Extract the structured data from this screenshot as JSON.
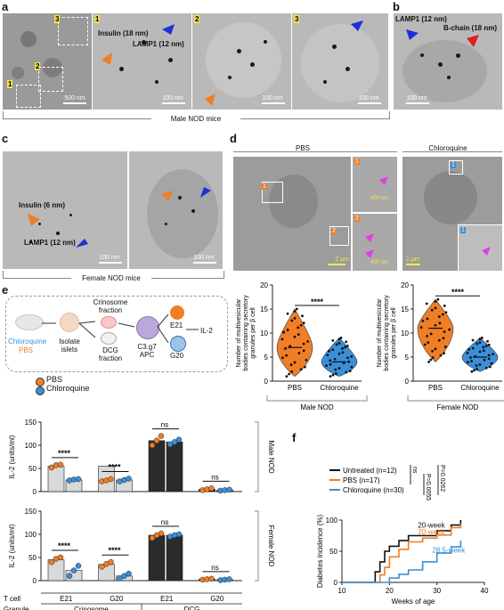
{
  "panels": {
    "a": {
      "letter": "a",
      "box_numbers": [
        "1",
        "2",
        "3"
      ],
      "insulin_label": "Insulin (18 nm)",
      "lamp1_label": "LAMP1 (12 nm)",
      "scalebar_overview": "500 nm",
      "scalebar_zoom": "100 nm",
      "caption": "Male NOD mice"
    },
    "b": {
      "letter": "b",
      "lamp1_label": "LAMP1 (12 nm)",
      "bchain_label": "B-chain (18 nm)",
      "scalebar": "100 nm"
    },
    "c": {
      "letter": "c",
      "insulin_label": "Insulin (6 nm)",
      "lamp1_label": "LAMP1 (12 nm)",
      "scalebar": "100 nm",
      "caption": "Female NOD mice"
    },
    "d": {
      "letter": "d",
      "pbs_title": "PBS",
      "chloroquine_title": "Chloroquine",
      "scale_2um": "2 μm",
      "scale_400nm": "400 nm",
      "scale_1um": "1 μm",
      "insert_numbers": [
        "1",
        "2",
        "1"
      ],
      "ylabel": "Number of multivesicular bodies containing secretory granules per β cell",
      "male": {
        "ticks": [
          "0",
          "5",
          "10",
          "15",
          "20"
        ],
        "categories": [
          "PBS",
          "Chloroquine"
        ],
        "signif": "****",
        "caption": "Male NOD"
      },
      "female": {
        "ticks": [
          "0",
          "5",
          "10",
          "15",
          "20"
        ],
        "categories": [
          "PBS",
          "Chloroquine"
        ],
        "signif": "****",
        "caption": "Female NOD"
      }
    },
    "e": {
      "letter": "e",
      "schematic": {
        "chloroquine": "Chloroquine",
        "pbs": "PBS",
        "isolate": "Isolate islets",
        "crinosome_fraction": "Crinosome fraction",
        "dcg_fraction": "DCG fraction",
        "apc": "C3.g7 APC",
        "e21": "E21",
        "g20": "G20",
        "il2": "IL-2"
      },
      "legend": [
        "PBS",
        "Chloroquine"
      ],
      "ylabel": "IL-2 (units/ml)",
      "ticks": [
        "0",
        "50",
        "100",
        "150"
      ],
      "male_label": "Male NOD",
      "female_label": "Female NOD",
      "signif_labels": [
        "****",
        "****",
        "ns",
        "ns"
      ],
      "tcell_label": "T cell",
      "granule_label": "Granule",
      "tcells": [
        "E21",
        "G20",
        "E21",
        "G20"
      ],
      "granules": [
        "Crinosome",
        "DCG"
      ]
    },
    "f": {
      "letter": "f",
      "legend": [
        "Untreated (n=12)",
        "PBS (n=17)",
        "Chloroquine (n=30)"
      ],
      "pvalues": [
        "ns",
        "P=0.0055",
        "P=0.0262"
      ],
      "annotations": [
        "20-week",
        "20-week",
        "28.5-week"
      ],
      "ylabel": "Diabetes incidence (%)",
      "xlabel": "Weeks of age",
      "xticks": [
        "10",
        "20",
        "30",
        "40"
      ]
    }
  },
  "colors": {
    "pbs": "#f07e26",
    "chloroquine": "#3a8fd8",
    "untreated": "#111111",
    "light_bar": "#d9d9d9",
    "dark_bar": "#2b2b2b"
  },
  "chart_data": [
    {
      "type": "violin",
      "panel": "d-male",
      "categories": [
        "PBS",
        "Chloroquine"
      ],
      "ylabel": "Number of multivesicular bodies containing secretory granules per β cell",
      "ylim": [
        0,
        20
      ],
      "medians": [
        7,
        4
      ],
      "ranges": [
        [
          1,
          15
        ],
        [
          1,
          9
        ]
      ],
      "significance": "****"
    },
    {
      "type": "violin",
      "panel": "d-female",
      "categories": [
        "PBS",
        "Chloroquine"
      ],
      "ylabel": "Number of multivesicular bodies containing secretory granules per β cell",
      "ylim": [
        0,
        20
      ],
      "medians": [
        11,
        5
      ],
      "ranges": [
        [
          4,
          17
        ],
        [
          2,
          9
        ]
      ],
      "significance": "****"
    },
    {
      "type": "bar",
      "panel": "e-male",
      "ylabel": "IL-2 (units/ml)",
      "ylim": [
        0,
        150
      ],
      "categories": [
        "E21 Crinosome",
        "G20 Crinosome",
        "E21 DCG",
        "G20 DCG"
      ],
      "series": [
        {
          "name": "PBS",
          "values": [
            55,
            55,
            110,
            5
          ]
        },
        {
          "name": "Chloroquine",
          "values": [
            25,
            25,
            107,
            3
          ]
        }
      ],
      "points": [
        [
          [
            52,
            57,
            58
          ],
          [
            22,
            24,
            27
          ],
          [
            100,
            110,
            120
          ],
          [
            3,
            5,
            7
          ]
        ],
        [
          [
            24,
            26,
            27
          ],
          [
            22,
            25,
            28
          ],
          [
            102,
            107,
            112
          ],
          [
            2,
            3,
            4
          ]
        ]
      ],
      "significance": [
        "****",
        "****",
        "ns",
        "ns"
      ]
    },
    {
      "type": "bar",
      "panel": "e-female",
      "ylabel": "IL-2 (units/ml)",
      "ylim": [
        0,
        150
      ],
      "categories": [
        "E21 Crinosome",
        "G20 Crinosome",
        "E21 DCG",
        "G20 DCG"
      ],
      "series": [
        {
          "name": "PBS",
          "values": [
            45,
            35,
            98,
            3
          ]
        },
        {
          "name": "Chloroquine",
          "values": [
            22,
            10,
            98,
            2
          ]
        }
      ],
      "points": [
        [
          [
            40,
            47,
            50
          ],
          [
            30,
            36,
            40
          ],
          [
            92,
            98,
            102
          ],
          [
            2,
            3,
            4
          ]
        ],
        [
          [
            10,
            22,
            32
          ],
          [
            5,
            10,
            15
          ],
          [
            95,
            98,
            100
          ],
          [
            1,
            2,
            3
          ]
        ]
      ],
      "significance": [
        "****",
        "****",
        "ns",
        "ns"
      ]
    },
    {
      "type": "line",
      "panel": "f",
      "xlabel": "Weeks of age",
      "ylabel": "Diabetes incidence (%)",
      "xlim": [
        10,
        40
      ],
      "ylim": [
        0,
        100
      ],
      "series": [
        {
          "name": "Untreated (n=12)",
          "x": [
            10,
            16,
            17,
            18,
            19,
            20,
            22,
            24,
            27,
            30,
            33,
            35
          ],
          "y": [
            0,
            0,
            17,
            33,
            50,
            58,
            67,
            75,
            75,
            83,
            92,
            100
          ]
        },
        {
          "name": "PBS (n=17)",
          "x": [
            10,
            17,
            18,
            19,
            20,
            22,
            24,
            27,
            30,
            33,
            35
          ],
          "y": [
            0,
            0,
            12,
            24,
            41,
            53,
            65,
            71,
            76,
            88,
            94
          ]
        },
        {
          "name": "Chloroquine (n=30)",
          "x": [
            10,
            18,
            20,
            22,
            24,
            27,
            30,
            33,
            35
          ],
          "y": [
            0,
            0,
            7,
            13,
            20,
            33,
            47,
            57,
            67
          ]
        }
      ],
      "annotations": [
        "20-week",
        "20-week",
        "28.5-week"
      ],
      "pvalues": [
        "ns",
        "P=0.0055",
        "P=0.0262"
      ]
    }
  ]
}
